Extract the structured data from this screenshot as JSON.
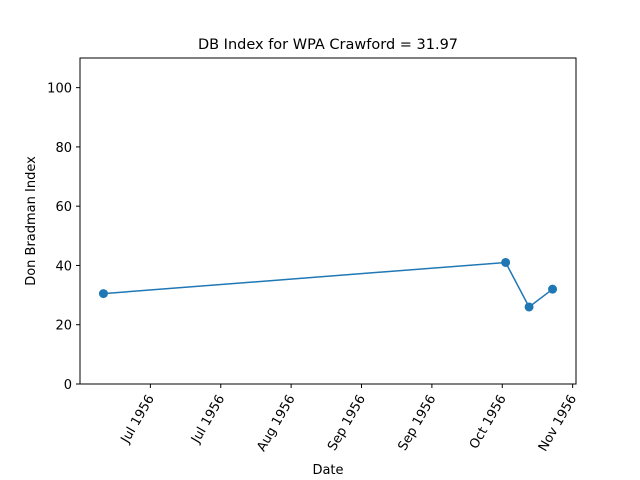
{
  "chart_data": {
    "type": "line",
    "title": "DB Index for WPA Crawford = 31.97",
    "x_label": "Date",
    "y_label": "Don Bradman Index",
    "x": [
      "1956-06-17",
      "1956-10-15",
      "1956-10-22",
      "1956-10-29"
    ],
    "values": [
      30.5,
      41,
      26,
      32
    ],
    "color": "#1f77b4",
    "xlim": [
      "1956-06-10",
      "1956-11-05"
    ],
    "xticks": [
      {
        "value": "1956-07-01",
        "label": "Jul 1956"
      },
      {
        "value": "1956-07-22",
        "label": "Jul 1956"
      },
      {
        "value": "1956-08-12",
        "label": "Aug 1956"
      },
      {
        "value": "1956-09-02",
        "label": "Sep 1956"
      },
      {
        "value": "1956-09-23",
        "label": "Sep 1956"
      },
      {
        "value": "1956-10-14",
        "label": "Oct 1956"
      },
      {
        "value": "1956-11-04",
        "label": "Nov 1956"
      }
    ],
    "ylim": [
      0,
      110
    ],
    "yticks": [
      0,
      20,
      40,
      60,
      80,
      100
    ],
    "grid": false
  }
}
